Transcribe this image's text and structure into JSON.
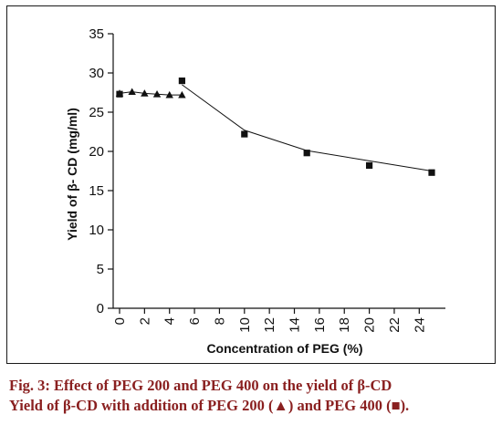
{
  "chart_data": {
    "type": "scatter",
    "xlabel": "Concentration of PEG (%)",
    "ylabel": "Yield of β- CD (mg/ml)",
    "xlim": [
      0,
      25
    ],
    "ylim": [
      0,
      35
    ],
    "xticks": [
      "0",
      "2",
      "4",
      "6",
      "8",
      "10",
      "12",
      "14",
      "16",
      "18",
      "20",
      "22",
      "24"
    ],
    "yticks": [
      "0",
      "5",
      "10",
      "15",
      "20",
      "25",
      "30",
      "35"
    ],
    "grid": false,
    "series": [
      {
        "marker": "triangle",
        "line": true,
        "x": [
          0,
          1,
          2,
          3,
          4,
          5
        ],
        "y": [
          27.4,
          27.6,
          27.4,
          27.3,
          27.2,
          27.2
        ]
      },
      {
        "marker": "square",
        "line": true,
        "x": [
          0,
          5,
          10,
          15,
          20,
          25
        ],
        "y": [
          27.3,
          29.0,
          22.2,
          19.8,
          18.2,
          17.3
        ]
      }
    ],
    "trend_line": {
      "x": [
        5,
        10,
        15,
        20,
        25
      ],
      "y": [
        28.5,
        22.7,
        20.1,
        18.8,
        17.5
      ]
    }
  },
  "caption": {
    "line1": "Fig. 3: Effect of PEG 200 and PEG 400 on the yield of β-CD",
    "line2": "Yield of β-CD with addition of PEG 200 (▲) and PEG 400 (■)."
  },
  "colors": {
    "caption": "#8a2020",
    "ink": "#111111"
  }
}
